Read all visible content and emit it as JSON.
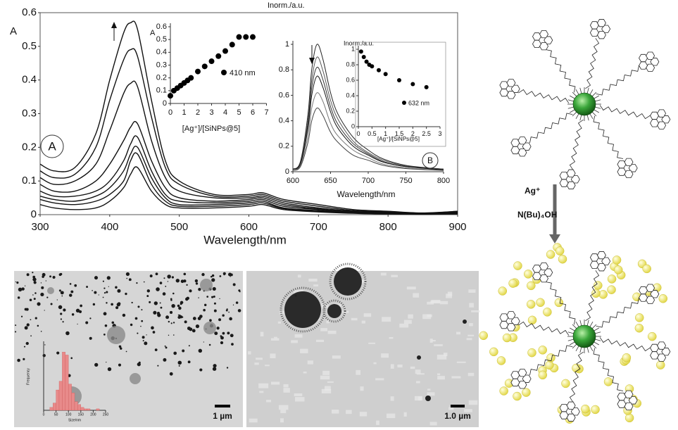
{
  "chart_data": [
    {
      "type": "line",
      "ylabel": "A",
      "xlabel": "Wavelength/nm",
      "panel_label": "A",
      "x": [
        300,
        320,
        350,
        380,
        400,
        420,
        430,
        440,
        460,
        480,
        500,
        550,
        600,
        620,
        650,
        700,
        750,
        800,
        850,
        900
      ],
      "series": [
        {
          "color": "#111111",
          "values": [
            0.15,
            0.13,
            0.14,
            0.24,
            0.4,
            0.54,
            0.57,
            0.55,
            0.34,
            0.16,
            0.1,
            0.06,
            0.06,
            0.065,
            0.045,
            0.03,
            0.015,
            0.01,
            0.005,
            0.01
          ]
        },
        {
          "color": "#111111",
          "values": [
            0.13,
            0.11,
            0.12,
            0.2,
            0.34,
            0.46,
            0.49,
            0.47,
            0.29,
            0.14,
            0.09,
            0.055,
            0.055,
            0.06,
            0.04,
            0.025,
            0.012,
            0.008,
            0.004,
            0.01
          ]
        },
        {
          "color": "#111111",
          "values": [
            0.11,
            0.09,
            0.1,
            0.15,
            0.25,
            0.36,
            0.39,
            0.38,
            0.22,
            0.11,
            0.07,
            0.05,
            0.05,
            0.055,
            0.035,
            0.02,
            0.01,
            0.006,
            0.003,
            0.008
          ]
        },
        {
          "color": "#111111",
          "values": [
            0.09,
            0.07,
            0.07,
            0.1,
            0.15,
            0.22,
            0.26,
            0.27,
            0.16,
            0.08,
            0.05,
            0.04,
            0.045,
            0.05,
            0.03,
            0.017,
            0.008,
            0.005,
            0.003,
            0.006
          ]
        },
        {
          "color": "#111111",
          "values": [
            0.07,
            0.055,
            0.055,
            0.07,
            0.1,
            0.16,
            0.21,
            0.23,
            0.13,
            0.06,
            0.04,
            0.035,
            0.04,
            0.045,
            0.025,
            0.015,
            0.007,
            0.004,
            0.002,
            0.005
          ]
        },
        {
          "color": "#111111",
          "values": [
            0.055,
            0.045,
            0.04,
            0.055,
            0.08,
            0.13,
            0.18,
            0.2,
            0.11,
            0.05,
            0.03,
            0.03,
            0.035,
            0.04,
            0.02,
            0.012,
            0.006,
            0.003,
            0.002,
            0.004
          ]
        },
        {
          "color": "#111111",
          "values": [
            0.045,
            0.035,
            0.03,
            0.04,
            0.06,
            0.1,
            0.16,
            0.18,
            0.09,
            0.04,
            0.025,
            0.025,
            0.03,
            0.035,
            0.018,
            0.01,
            0.005,
            0.003,
            0.001,
            0.003
          ]
        },
        {
          "color": "#111111",
          "values": [
            0.03,
            0.02,
            0.015,
            0.02,
            0.04,
            0.08,
            0.12,
            0.14,
            0.07,
            0.03,
            0.02,
            0.02,
            0.025,
            0.03,
            0.015,
            0.008,
            0.004,
            0.002,
            0.001,
            0.002
          ]
        }
      ],
      "xlim": [
        300,
        900
      ],
      "xticks": [
        300,
        400,
        500,
        600,
        700,
        800,
        900
      ],
      "ylim": [
        0,
        0.6
      ],
      "yticks": [
        0,
        0.1,
        0.2,
        0.3,
        0.4,
        0.5,
        0.6
      ]
    },
    {
      "type": "scatter",
      "ylabel": "A",
      "xlabel": "[Ag⁺]/[SiNPs@5]",
      "series_label": "410 nm",
      "color": "#000000",
      "x": [
        0,
        0.25,
        0.5,
        0.75,
        1,
        1.25,
        1.5,
        2,
        2.5,
        3,
        3.5,
        4,
        4.5,
        5,
        5.5,
        6
      ],
      "values": [
        0.06,
        0.1,
        0.12,
        0.14,
        0.16,
        0.18,
        0.2,
        0.25,
        0.29,
        0.33,
        0.37,
        0.41,
        0.46,
        0.52,
        0.52,
        0.52
      ],
      "xlim": [
        0,
        7
      ],
      "xticks": [
        0,
        1,
        2,
        3,
        4,
        5,
        6,
        7
      ],
      "ylim": [
        0,
        0.6
      ],
      "yticks": [
        0,
        0.1,
        0.2,
        0.3,
        0.4,
        0.5,
        0.6
      ]
    },
    {
      "type": "line",
      "ylabel": "Inorm./a.u.",
      "xlabel": "Wavelength/nm",
      "panel_label": "B",
      "x": [
        600,
        610,
        620,
        625,
        632,
        640,
        650,
        660,
        680,
        700,
        720,
        750,
        800
      ],
      "series": [
        {
          "color": "#222222",
          "values": [
            0.02,
            0.08,
            0.45,
            0.8,
            1.0,
            0.88,
            0.62,
            0.45,
            0.27,
            0.17,
            0.1,
            0.05,
            0.02
          ]
        },
        {
          "color": "#555555",
          "values": [
            0.02,
            0.07,
            0.41,
            0.72,
            0.9,
            0.79,
            0.56,
            0.41,
            0.24,
            0.15,
            0.09,
            0.045,
            0.02
          ]
        },
        {
          "color": "#333333",
          "values": [
            0.02,
            0.07,
            0.37,
            0.66,
            0.82,
            0.72,
            0.51,
            0.37,
            0.22,
            0.14,
            0.08,
            0.04,
            0.02
          ]
        },
        {
          "color": "#111111",
          "values": [
            0.02,
            0.06,
            0.34,
            0.6,
            0.75,
            0.66,
            0.47,
            0.34,
            0.2,
            0.13,
            0.075,
            0.04,
            0.015
          ]
        },
        {
          "color": "#777777",
          "values": [
            0.01,
            0.05,
            0.28,
            0.5,
            0.62,
            0.55,
            0.38,
            0.28,
            0.17,
            0.11,
            0.06,
            0.03,
            0.01
          ]
        },
        {
          "color": "#444444",
          "values": [
            0.01,
            0.04,
            0.23,
            0.4,
            0.5,
            0.44,
            0.31,
            0.23,
            0.13,
            0.09,
            0.05,
            0.025,
            0.01
          ]
        }
      ],
      "xlim": [
        600,
        800
      ],
      "xticks": [
        600,
        650,
        700,
        750,
        800
      ],
      "ylim": [
        0,
        1
      ],
      "yticks": [
        0,
        0.2,
        0.4,
        0.6,
        0.8,
        1
      ]
    },
    {
      "type": "scatter",
      "ylabel": "Inorm./a.u.",
      "xlabel": "[Ag⁺]/[SiNPs@5]",
      "series_label": "632 nm",
      "color": "#000000",
      "x": [
        0.1,
        0.2,
        0.3,
        0.4,
        0.5,
        0.75,
        1,
        1.5,
        2,
        2.5
      ],
      "values": [
        0.97,
        0.9,
        0.84,
        0.8,
        0.78,
        0.73,
        0.68,
        0.6,
        0.55,
        0.51
      ],
      "xlim": [
        0,
        3
      ],
      "xticks": [
        0,
        0.5,
        1,
        1.5,
        2,
        2.5,
        3
      ],
      "ylim": [
        0,
        1
      ],
      "yticks": [
        0,
        0.2,
        0.4,
        0.6,
        0.8,
        1
      ]
    },
    {
      "type": "histogram",
      "ylabel": "Frequency",
      "xlabel": "Size/nm",
      "color": "#e88a8a",
      "bins": [
        25,
        37.5,
        50,
        62.5,
        75,
        87.5,
        100,
        112.5,
        125,
        137.5,
        150,
        162.5,
        175,
        187.5,
        200,
        212.5,
        225
      ],
      "values": [
        2,
        5,
        14,
        20,
        40,
        38,
        18,
        12,
        6,
        4,
        2,
        1,
        1,
        0,
        0,
        1
      ],
      "xlim": [
        0,
        250
      ],
      "xticks": [
        0,
        50,
        100,
        150,
        200,
        250
      ],
      "ylim": [
        0,
        45
      ]
    }
  ],
  "figure": {
    "scale_bars": [
      "1 µm",
      "1.0 µm"
    ],
    "reagents": [
      "Ag⁺",
      "N(Bu)₄OH"
    ]
  }
}
